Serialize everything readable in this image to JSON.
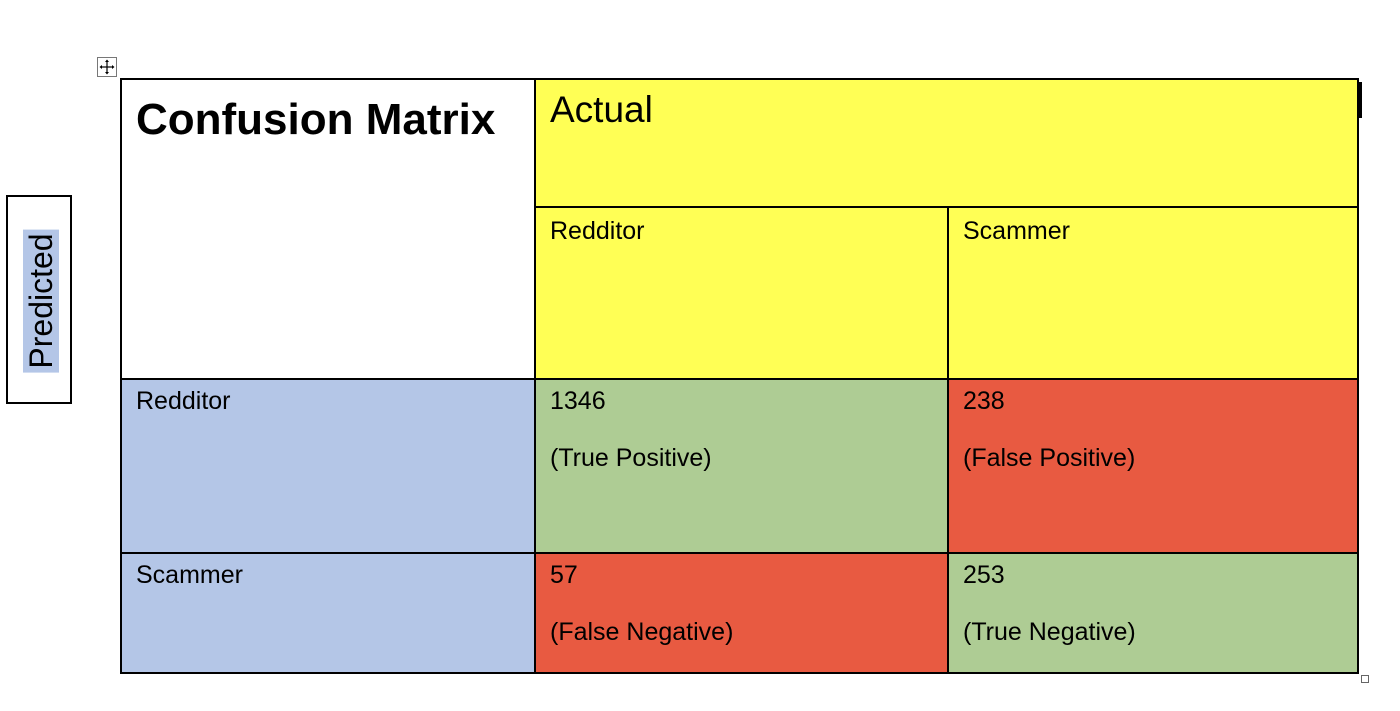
{
  "side_label": "Predicted",
  "matrix": {
    "title": "Confusion Matrix",
    "actual_header": "Actual",
    "actual_classes": [
      "Redditor",
      "Scammer"
    ],
    "predicted_classes": [
      "Redditor",
      "Scammer"
    ],
    "rows": [
      [
        {
          "value": "1346",
          "label": "(True Positive)",
          "color": "#aecc94"
        },
        {
          "value": "238",
          "label": "(False Positive)",
          "color": "#e85a41"
        }
      ],
      [
        {
          "value": "57",
          "label": "(False Negative)",
          "color": "#e85a41"
        },
        {
          "value": "253",
          "label": "(True Negative)",
          "color": "#aecc94"
        }
      ]
    ]
  },
  "colors": {
    "header": "#ffff55",
    "row_header": "#b4c6e7",
    "correct": "#aecc94",
    "incorrect": "#e85a41"
  },
  "icons": {
    "table_move_handle": "move-arrows-icon",
    "table_resize_handle": "resize-handle-icon"
  }
}
